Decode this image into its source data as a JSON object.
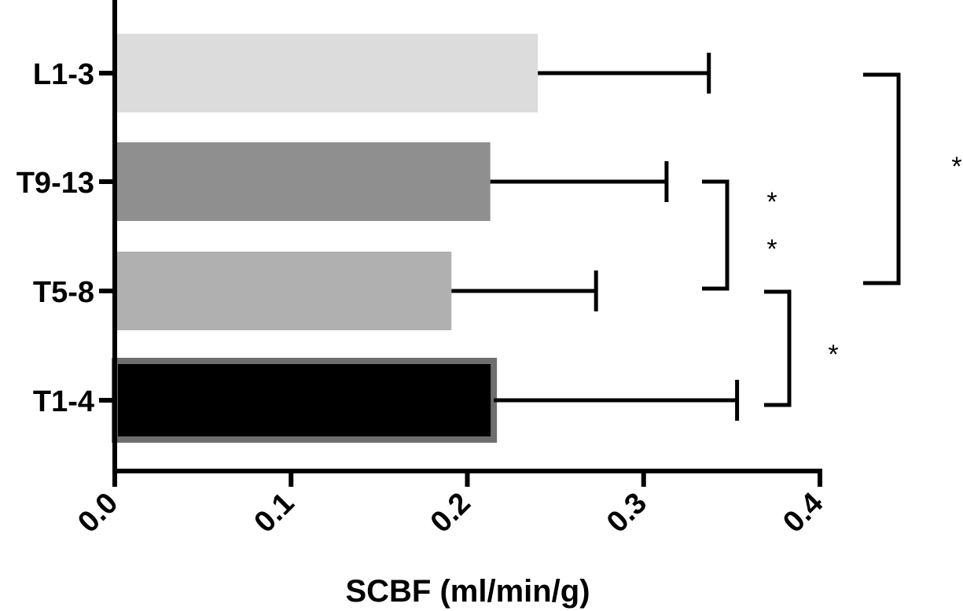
{
  "chart_data": {
    "type": "bar",
    "orientation": "horizontal",
    "categories": [
      "L1-3",
      "T9-13",
      "T5-8",
      "T1-4"
    ],
    "values": [
      0.24,
      0.213,
      0.191,
      0.215
    ],
    "errors": [
      0.097,
      0.1,
      0.082,
      0.138
    ],
    "bar_colors": [
      "#dcdcdc",
      "#8f8f8f",
      "#b0b0b0",
      "#000000"
    ],
    "xlabel": "SCBF (ml/min/g)",
    "xlim": [
      0.0,
      0.4
    ],
    "x_ticks": [
      "0.0",
      "0.1",
      "0.2",
      "0.3",
      "0.4"
    ],
    "grid": false,
    "significance": [
      {
        "between": [
          "T9-13",
          "T5-8"
        ],
        "label": "* *"
      },
      {
        "between": [
          "T5-8",
          "T1-4"
        ],
        "label": "*"
      },
      {
        "between": [
          "L1-3",
          "T5-8"
        ],
        "label": "*"
      }
    ]
  }
}
